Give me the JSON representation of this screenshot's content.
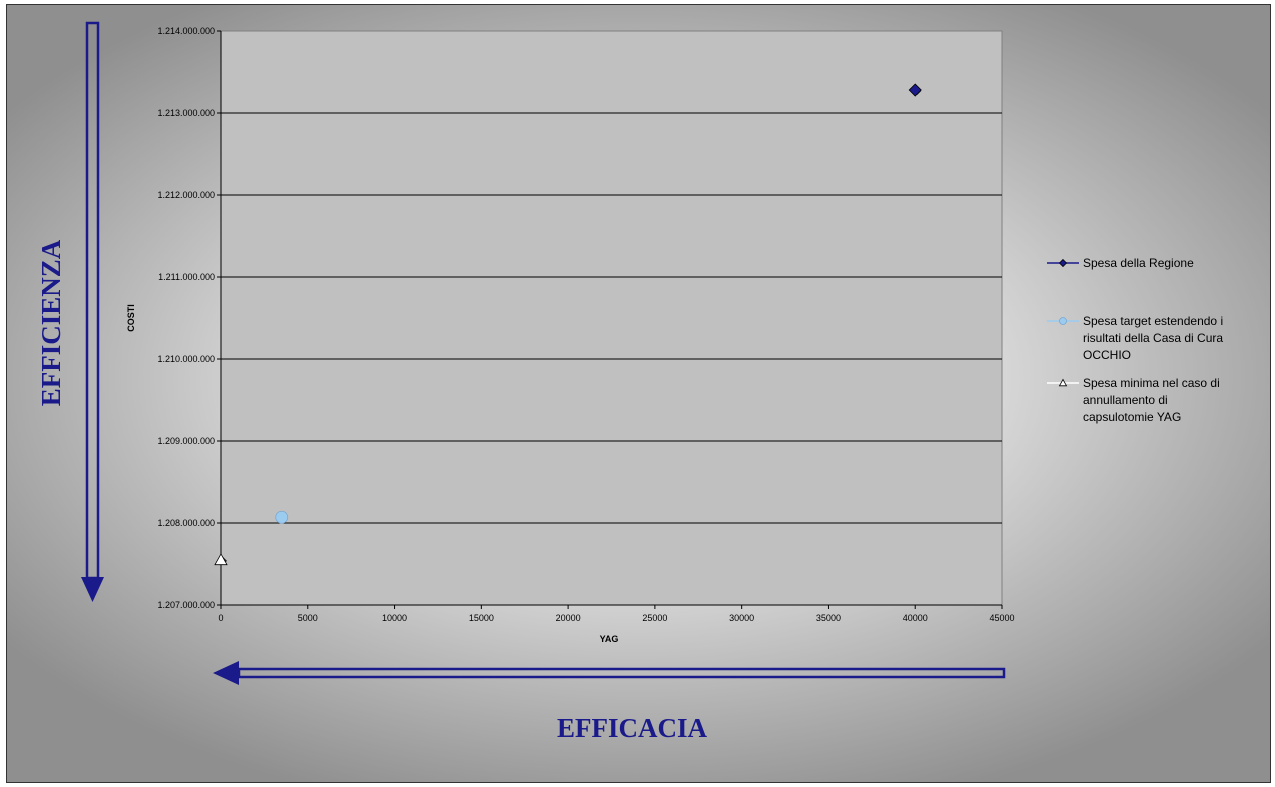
{
  "chart_data": {
    "type": "scatter",
    "xlabel": "YAG",
    "ylabel": "COSTI",
    "xlim": [
      0,
      45000
    ],
    "ylim": [
      1207000000,
      1214000000
    ],
    "x_ticks": [
      "0",
      "5000",
      "10000",
      "15000",
      "20000",
      "25000",
      "30000",
      "35000",
      "40000",
      "45000"
    ],
    "y_ticks": [
      "1.207.000.000",
      "1.208.000.000",
      "1.209.000.000",
      "1.210.000.000",
      "1.211.000.000",
      "1.212.000.000",
      "1.213.000.000",
      "1.214.000.000"
    ],
    "grid": "horizontal",
    "legend_position": "right",
    "series": [
      {
        "name": "Spesa della Regione",
        "marker": "diamond",
        "color": "#1a1a8a",
        "points": [
          [
            40000,
            1213280000
          ]
        ]
      },
      {
        "name": "Spesa target estendendo i risultati della Casa di Cura OCCHIO",
        "marker": "circle",
        "color": "#9ccbf0",
        "points": [
          [
            3500,
            1208070000
          ]
        ]
      },
      {
        "name": "Spesa minima nel caso di annullamento di capsulotomie YAG",
        "marker": "triangle",
        "color": "#ffffff",
        "points": [
          [
            0,
            1207550000
          ]
        ]
      }
    ],
    "legend_lines": [
      [
        "Spesa della Regione"
      ],
      [
        "Spesa target estendendo i",
        "risultati della Casa di Cura",
        "OCCHIO"
      ],
      [
        "Spesa minima nel caso di",
        "annullamento di",
        "capsulotomie YAG"
      ]
    ]
  },
  "annotations": {
    "vertical_label": "EFFICIENZA",
    "horizontal_label": "EFFICACIA"
  },
  "colors": {
    "plot_background": "#c0c0c0",
    "arrow": "#1a1a8a",
    "label": "#1a1a8a"
  }
}
